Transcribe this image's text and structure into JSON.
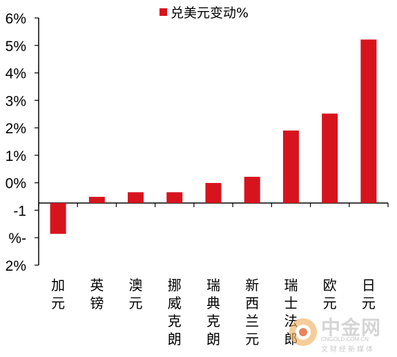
{
  "chart_data": {
    "type": "bar",
    "legend": {
      "label": "兑美元变动%",
      "color": "#D7141E",
      "placement": "top-center"
    },
    "y_tick_labels": [
      "6%",
      "5%",
      "4%",
      "3%",
      "2%",
      "1%",
      "0%",
      "-1",
      "%-",
      "2%"
    ],
    "ylim": [
      -2,
      6
    ],
    "grid": false,
    "categories": [
      "加元",
      "英镑",
      "澳元",
      "挪威克朗",
      "瑞典克朗",
      "新西兰元",
      "瑞士法郎",
      "欧元",
      "日元"
    ],
    "series": [
      {
        "name": "兑美元变动%",
        "color": "#D7141E",
        "values": [
          -1.0,
          0.2,
          0.35,
          0.35,
          0.65,
          0.85,
          2.35,
          2.9,
          5.3
        ]
      }
    ]
  },
  "watermark": {
    "name": "中金网",
    "domain": "CNGOLD.COM.CN",
    "tagline": "文财经新媒体"
  }
}
